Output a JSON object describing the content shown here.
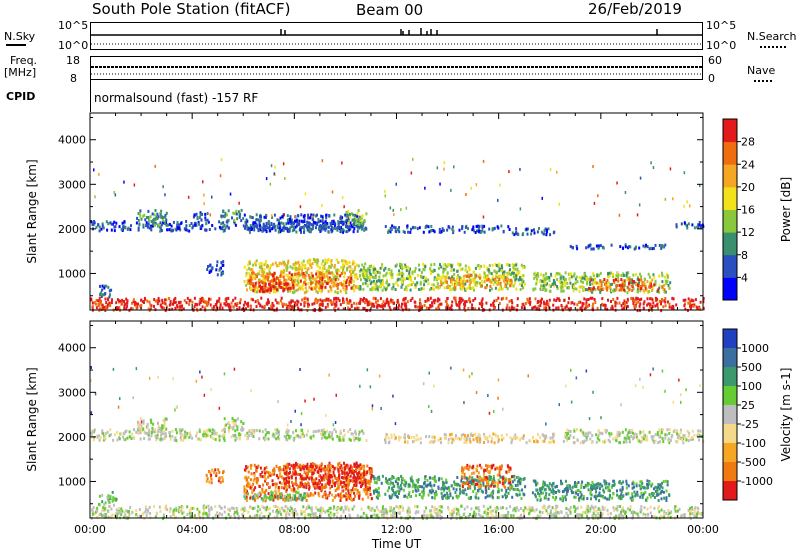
{
  "header": {
    "title": "South Pole Station (fitACF)",
    "beam": "Beam 00",
    "date": "26/Feb/2019"
  },
  "params": {
    "nsky_label": "N.Sky",
    "nsearch_label": "N.Search",
    "freq_label": "Freq.",
    "freq_unit": "[MHz]",
    "nave_label": "Nave",
    "cpid_label": "CPID",
    "cpid_text": "normalsound (fast) -157 RF",
    "noise_ticks_left": [
      "10^5",
      "10^0"
    ],
    "noise_ticks_right": [
      "10^5",
      "10^0"
    ],
    "freq_ticks": [
      "18",
      "8"
    ],
    "nave_ticks": [
      "60",
      "0"
    ]
  },
  "chart_data": [
    {
      "type": "heatmap",
      "title": "",
      "xlabel": "",
      "ylabel": "Slant Range [km]",
      "x_ticks": [
        "00:00",
        "04:00",
        "08:00",
        "12:00",
        "16:00",
        "20:00",
        "00:00"
      ],
      "xlim": [
        0,
        24
      ],
      "y_ticks": [
        1000,
        2000,
        3000,
        4000
      ],
      "ylim": [
        180,
        4600
      ],
      "colorbar": {
        "label": "Power [dB]",
        "ticks": [
          "4",
          "8",
          "12",
          "16",
          "20",
          "24",
          "28"
        ],
        "colors": [
          "#0000ff",
          "#2a4fbf",
          "#3a8f6e",
          "#88c83a",
          "#f2e21c",
          "#f5a623",
          "#f06d0f",
          "#e31a1c"
        ]
      },
      "regions": [
        {
          "t0": 0.0,
          "t1": 10.8,
          "r0": 1980,
          "r1": 2200,
          "level": 1
        },
        {
          "t0": 1.8,
          "t1": 3.0,
          "r0": 2100,
          "r1": 2450,
          "level": 2
        },
        {
          "t0": 4.0,
          "t1": 4.6,
          "r0": 2200,
          "r1": 2450,
          "level": 1
        },
        {
          "t0": 5.1,
          "t1": 6.0,
          "r0": 2200,
          "r1": 2450,
          "level": 2
        },
        {
          "t0": 6.0,
          "t1": 10.6,
          "r0": 1950,
          "r1": 2350,
          "level": 1
        },
        {
          "t0": 10.0,
          "t1": 10.8,
          "r0": 2100,
          "r1": 2450,
          "level": 3
        },
        {
          "t0": 11.5,
          "t1": 16.4,
          "r0": 1950,
          "r1": 2100,
          "level": 1
        },
        {
          "t0": 16.5,
          "t1": 18.2,
          "r0": 1900,
          "r1": 2050,
          "level": 1
        },
        {
          "t0": 18.5,
          "t1": 22.5,
          "r0": 1580,
          "r1": 1680,
          "level": 1
        },
        {
          "t0": 22.8,
          "t1": 24.0,
          "r0": 2050,
          "r1": 2200,
          "level": 1
        },
        {
          "t0": 6.0,
          "t1": 10.5,
          "r0": 600,
          "r1": 1350,
          "level": 4
        },
        {
          "t0": 6.2,
          "t1": 10.2,
          "r0": 680,
          "r1": 1050,
          "level": 6
        },
        {
          "t0": 6.3,
          "t1": 8.0,
          "r0": 620,
          "r1": 820,
          "level": 7
        },
        {
          "t0": 10.5,
          "t1": 17.0,
          "r0": 650,
          "r1": 1250,
          "level": 3
        },
        {
          "t0": 13.5,
          "t1": 16.5,
          "r0": 700,
          "r1": 1000,
          "level": 5
        },
        {
          "t0": 17.3,
          "t1": 22.7,
          "r0": 600,
          "r1": 1050,
          "level": 3
        },
        {
          "t0": 19.5,
          "t1": 22.5,
          "r0": 650,
          "r1": 900,
          "level": 6
        },
        {
          "t0": 0.3,
          "t1": 0.8,
          "r0": 500,
          "r1": 800,
          "level": 1
        },
        {
          "t0": 4.5,
          "t1": 5.2,
          "r0": 1000,
          "r1": 1300,
          "level": 1
        },
        {
          "t0": 0.0,
          "t1": 24.0,
          "r0": 200,
          "r1": 480,
          "level": 7
        }
      ]
    },
    {
      "type": "heatmap",
      "title": "",
      "xlabel": "Time UT",
      "ylabel": "Slant Range [km]",
      "x_ticks": [
        "00:00",
        "04:00",
        "08:00",
        "12:00",
        "16:00",
        "20:00",
        "00:00"
      ],
      "xlim": [
        0,
        24
      ],
      "y_ticks": [
        1000,
        2000,
        3000,
        4000
      ],
      "ylim": [
        180,
        4600
      ],
      "colorbar": {
        "label": "Velocity [m s-1]",
        "ticks": [
          "1000",
          "500",
          "100",
          "25",
          "-25",
          "-100",
          "-500",
          "-1000"
        ],
        "colors": [
          "#2040c0",
          "#3a6fa0",
          "#3a9a6e",
          "#66cc33",
          "#bebebe",
          "#f5d98a",
          "#f5a623",
          "#f07a10",
          "#e31a1c"
        ]
      },
      "regions": [
        {
          "t0": 0.0,
          "t1": 10.8,
          "r0": 1950,
          "r1": 2200,
          "level": 4
        },
        {
          "t0": 1.8,
          "t1": 3.0,
          "r0": 2100,
          "r1": 2450,
          "level": 4
        },
        {
          "t0": 5.1,
          "t1": 6.0,
          "r0": 2200,
          "r1": 2450,
          "level": 4
        },
        {
          "t0": 11.5,
          "t1": 18.2,
          "r0": 1900,
          "r1": 2100,
          "level": 5
        },
        {
          "t0": 18.5,
          "t1": 24.0,
          "r0": 1900,
          "r1": 2200,
          "level": 4
        },
        {
          "t0": 6.0,
          "t1": 11.0,
          "r0": 600,
          "r1": 1400,
          "level": 7
        },
        {
          "t0": 7.5,
          "t1": 11.0,
          "r0": 850,
          "r1": 1450,
          "level": 8
        },
        {
          "t0": 11.0,
          "t1": 17.0,
          "r0": 650,
          "r1": 1150,
          "level": 2
        },
        {
          "t0": 14.5,
          "t1": 16.5,
          "r0": 900,
          "r1": 1400,
          "level": 7
        },
        {
          "t0": 17.3,
          "t1": 22.7,
          "r0": 600,
          "r1": 1050,
          "level": 2
        },
        {
          "t0": 6.0,
          "t1": 8.5,
          "r0": 600,
          "r1": 800,
          "level": 3
        },
        {
          "t0": 0.3,
          "t1": 1.0,
          "r0": 500,
          "r1": 800,
          "level": 3
        },
        {
          "t0": 4.5,
          "t1": 5.2,
          "r0": 1000,
          "r1": 1300,
          "level": 7
        },
        {
          "t0": 0.0,
          "t1": 24.0,
          "r0": 200,
          "r1": 480,
          "level": 4
        }
      ]
    }
  ]
}
